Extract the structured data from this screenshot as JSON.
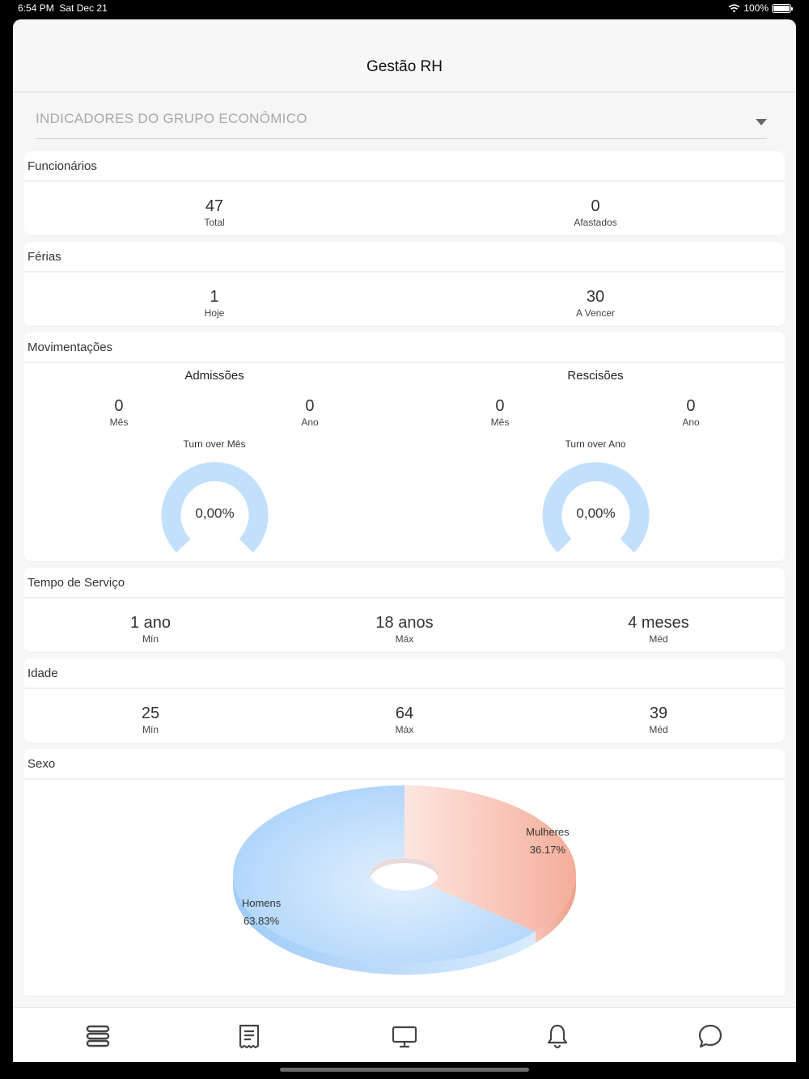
{
  "status": {
    "time": "6:54 PM",
    "date": "Sat Dec 21",
    "battery": "100%",
    "battery_level": 1.0
  },
  "header": {
    "title": "Gestão RH"
  },
  "filter": {
    "label": "INDICADORES DO GRUPO ECONÔMICO"
  },
  "funcionarios": {
    "title": "Funcionários",
    "total_value": "47",
    "total_label": "Total",
    "afastados_value": "0",
    "afastados_label": "Afastados"
  },
  "ferias": {
    "title": "Férias",
    "hoje_value": "1",
    "hoje_label": "Hoje",
    "vencer_value": "30",
    "vencer_label": "A Vencer"
  },
  "movimentacoes": {
    "title": "Movimentações",
    "admissoes": {
      "title": "Admissões",
      "mes_value": "0",
      "mes_label": "Mês",
      "ano_value": "0",
      "ano_label": "Ano",
      "turnover_title": "Turn over Mês",
      "turnover_value": "0,00%",
      "turnover_fraction": 0.0
    },
    "rescisoes": {
      "title": "Rescisões",
      "mes_value": "0",
      "mes_label": "Mês",
      "ano_value": "0",
      "ano_label": "Ano",
      "turnover_title": "Turn over Ano",
      "turnover_value": "0,00%",
      "turnover_fraction": 0.0
    }
  },
  "tempo_servico": {
    "title": "Tempo de Serviço",
    "min_value": "1 ano",
    "min_label": "Mín",
    "max_value": "18 anos",
    "max_label": "Máx",
    "med_value": "4 meses",
    "med_label": "Méd"
  },
  "idade": {
    "title": "Idade",
    "min_value": "25",
    "min_label": "Mín",
    "max_value": "64",
    "max_label": "Máx",
    "med_value": "39",
    "med_label": "Méd"
  },
  "sexo": {
    "title": "Sexo"
  },
  "chart_data": {
    "type": "pie",
    "categories": [
      "Mulheres",
      "Homens"
    ],
    "values": [
      36.17,
      63.83
    ],
    "labels": [
      "36.17%",
      "63.83%"
    ],
    "colors": [
      "#f7b4a2",
      "#a9d2fb"
    ]
  },
  "colors": {
    "gauge": "#c2e0fb",
    "tab_icon": "#444444"
  },
  "tabbar": {
    "icons": [
      "stack-icon",
      "receipt-icon",
      "monitor-icon",
      "bell-icon",
      "chat-icon"
    ]
  }
}
